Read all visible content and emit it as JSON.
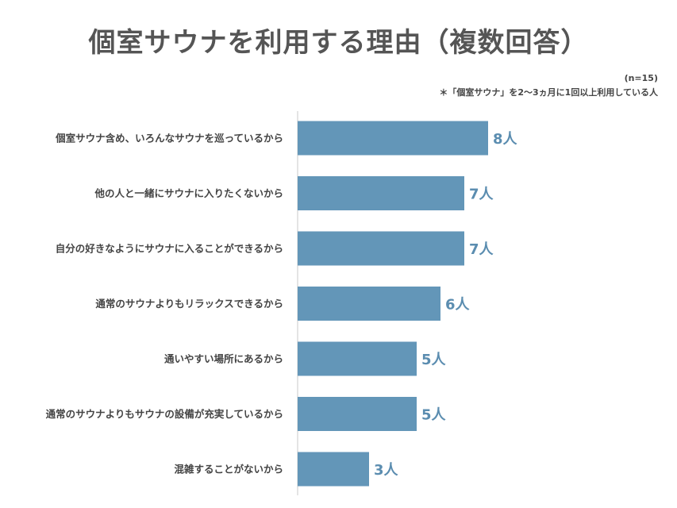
{
  "title": "個室サウナを利用する理由（複数回答）",
  "sample_size": "(n=15)",
  "note": "＊「個室サウナ」を2～3ヵ月に1回以上利用している人",
  "colors": {
    "bar": "#6396b8",
    "value_text": "#5b8db0",
    "axis": "#c8c8c8"
  },
  "chart_data": {
    "type": "bar",
    "orientation": "horizontal",
    "title": "個室サウナを利用する理由（複数回答）",
    "categories": [
      "個室サウナ含め、いろんなサウナを巡っているから",
      "他の人と一緒にサウナに入りたくないから",
      "自分の好きなようにサウナに入ることができるから",
      "通常のサウナよりもリラックスできるから",
      "通いやすい場所にあるから",
      "通常のサウナよりもサウナの設備が充実しているから",
      "混雑することがないから"
    ],
    "values": [
      8,
      7,
      7,
      6,
      5,
      5,
      3
    ],
    "value_labels": [
      "8人",
      "7人",
      "7人",
      "6人",
      "5人",
      "5人",
      "3人"
    ],
    "unit": "人",
    "xlim": [
      0,
      10
    ],
    "grid": false,
    "legend": "none"
  }
}
